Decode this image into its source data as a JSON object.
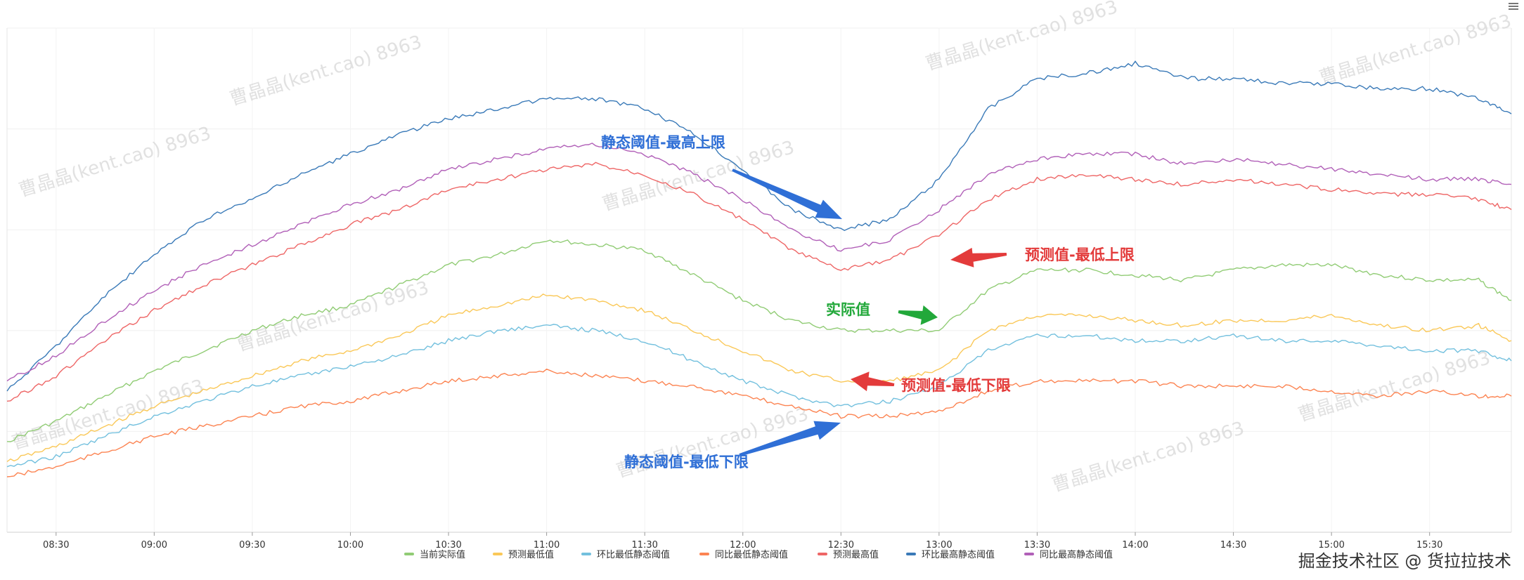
{
  "footer": {
    "text": "掘金技术社区 @ 货拉拉技术"
  },
  "icons": {
    "menu": "menu-icon"
  },
  "chart_data": {
    "type": "line",
    "x": [
      "08:15",
      "08:30",
      "08:45",
      "09:00",
      "09:15",
      "09:30",
      "09:45",
      "10:00",
      "10:15",
      "10:30",
      "10:45",
      "11:00",
      "11:15",
      "11:30",
      "11:45",
      "12:00",
      "12:15",
      "12:30",
      "12:45",
      "13:00",
      "13:15",
      "13:30",
      "13:45",
      "14:00",
      "14:15",
      "14:30",
      "14:45",
      "15:00",
      "15:15",
      "15:30",
      "15:45",
      "15:55"
    ],
    "x_ticks": [
      "08:30",
      "09:00",
      "09:30",
      "10:00",
      "10:30",
      "11:00",
      "11:30",
      "12:00",
      "12:30",
      "13:00",
      "13:30",
      "14:00",
      "14:30",
      "15:00",
      "15:30"
    ],
    "ylim": [
      0,
      100
    ],
    "grid": true,
    "legend_position": "bottom",
    "series": [
      {
        "name": "当前实际值",
        "color": "#91cc75",
        "values": [
          18,
          22,
          27,
          32,
          36,
          40,
          43,
          45,
          49,
          53,
          55,
          58,
          57,
          56,
          51,
          46,
          42,
          40,
          40,
          40,
          48,
          52,
          52,
          51,
          50,
          52,
          53,
          53,
          51,
          50,
          50,
          46
        ]
      },
      {
        "name": "预测最低值",
        "color": "#fac858",
        "values": [
          14,
          17,
          21,
          25,
          28,
          31,
          34,
          36,
          39,
          43,
          45,
          47,
          46,
          44,
          40,
          36,
          32,
          30,
          30,
          32,
          40,
          43,
          43,
          42,
          41,
          42,
          42,
          43,
          41,
          40,
          41,
          38
        ]
      },
      {
        "name": "环比最低静态阈值",
        "color": "#73c0de",
        "values": [
          13,
          15,
          19,
          23,
          26,
          29,
          31,
          33,
          35,
          38,
          40,
          41,
          40,
          38,
          34,
          30,
          27,
          25,
          26,
          29,
          36,
          39,
          39,
          38,
          38,
          39,
          38,
          38,
          37,
          36,
          36,
          34
        ]
      },
      {
        "name": "同比最低静态阈值",
        "color": "#fc8452",
        "values": [
          11,
          13,
          16,
          19,
          21,
          23,
          25,
          26,
          28,
          30,
          31,
          32,
          31,
          30,
          29,
          27,
          25,
          23,
          23,
          24,
          28,
          30,
          30,
          30,
          29,
          29,
          29,
          28,
          27,
          28,
          27,
          27
        ]
      },
      {
        "name": "预测最高值",
        "color": "#ee6666",
        "values": [
          26,
          31,
          38,
          44,
          49,
          53,
          57,
          61,
          64,
          68,
          70,
          72,
          73,
          71,
          67,
          62,
          56,
          52,
          54,
          59,
          66,
          70,
          71,
          70,
          69,
          70,
          69,
          68,
          67,
          67,
          66,
          64
        ]
      },
      {
        "name": "环比最高静态阈值",
        "color": "#3a7ab8",
        "values": [
          28,
          37,
          47,
          55,
          62,
          66,
          71,
          75,
          79,
          82,
          84,
          86,
          86,
          84,
          79,
          72,
          64,
          60,
          62,
          70,
          84,
          90,
          91,
          93,
          90,
          90,
          89,
          89,
          88,
          88,
          86,
          83
        ]
      },
      {
        "name": "同比最高静态阈值",
        "color": "#b160b8",
        "values": [
          30,
          35,
          42,
          48,
          53,
          57,
          61,
          65,
          68,
          72,
          74,
          76,
          77,
          75,
          71,
          66,
          60,
          56,
          58,
          64,
          71,
          74,
          75,
          75,
          73,
          74,
          73,
          72,
          71,
          70,
          70,
          69
        ]
      }
    ],
    "annotations": [
      {
        "text": "静态阈值-最高上限",
        "color": "#2f6fd6"
      },
      {
        "text": "预测值-最低上限",
        "color": "#e33b3b"
      },
      {
        "text": "实际值",
        "color": "#22a83a"
      },
      {
        "text": "预测值-最低下限",
        "color": "#e33b3b"
      },
      {
        "text": "静态阈值-最低下限",
        "color": "#2f6fd6"
      }
    ],
    "watermark": "曹晶晶(kent.cao) 8963"
  }
}
